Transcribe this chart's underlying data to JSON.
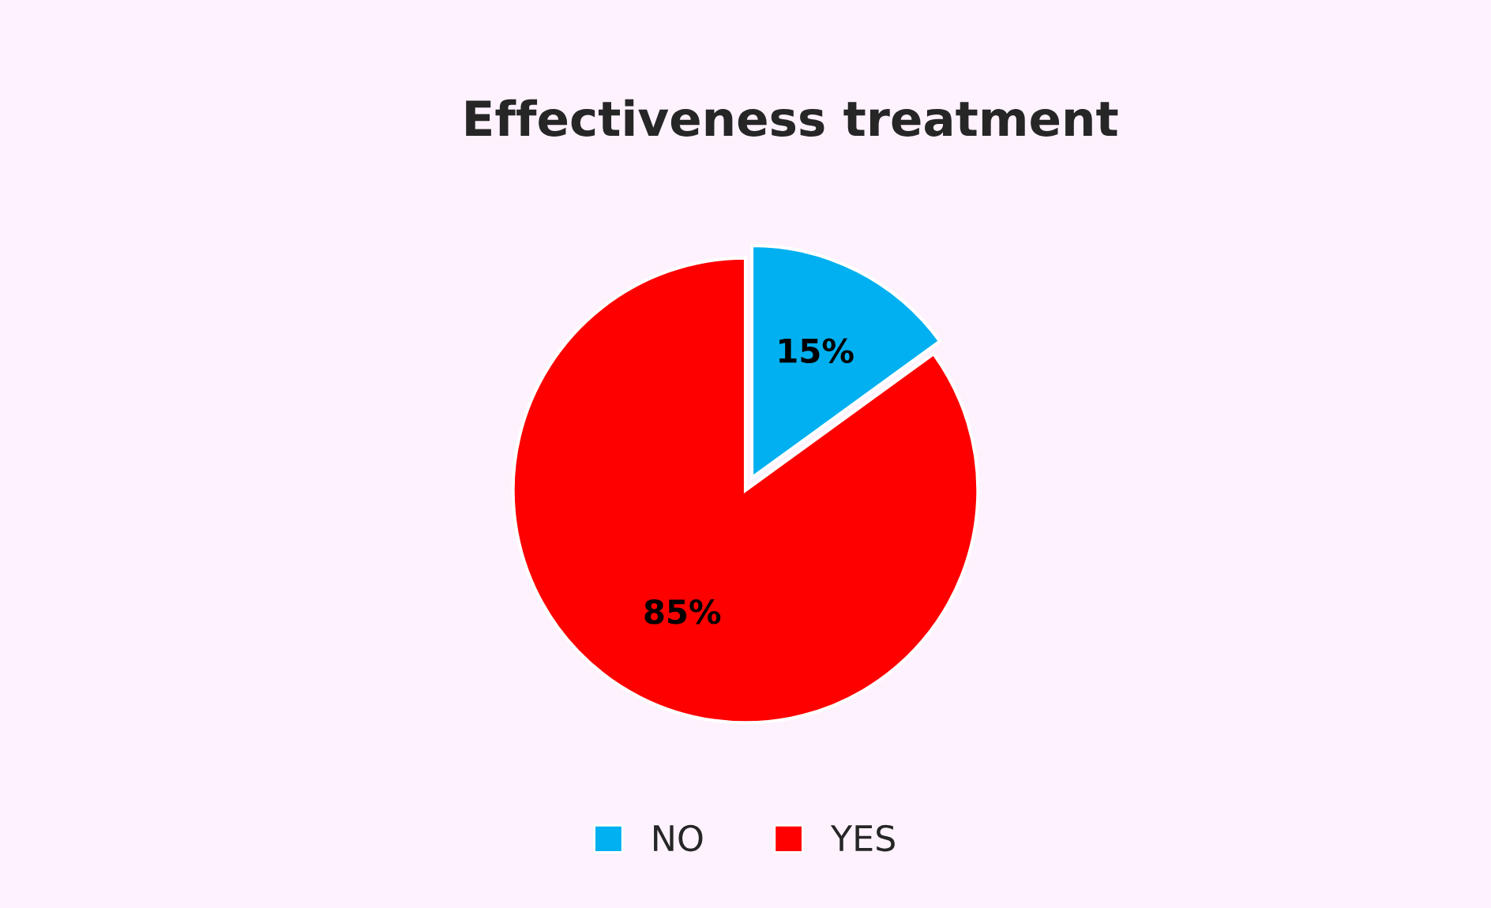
{
  "chart_data": {
    "type": "pie",
    "title": "Effectiveness treatment",
    "categories": [
      "NO",
      "YES"
    ],
    "values": [
      15,
      85
    ],
    "colors": [
      "#00b0f0",
      "#ff0000"
    ],
    "value_labels": [
      "15%",
      "85%"
    ],
    "legend": "bottom"
  }
}
